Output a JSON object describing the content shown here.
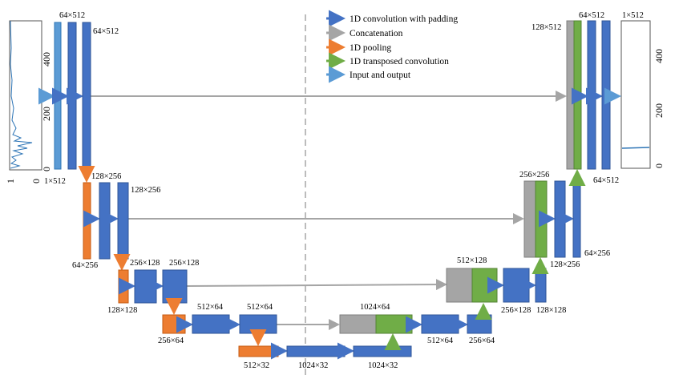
{
  "colors": {
    "conv": "#4472c4",
    "conv_edge": "#2f5597",
    "concat": "#a5a5a5",
    "pool": "#ed7d31",
    "transposed": "#70ad47",
    "io": "#5b9bd5",
    "dashed_line": "#a6a6a6"
  },
  "legend": [
    {
      "label": "1D convolution with padding",
      "color_key": "conv"
    },
    {
      "label": "Concatenation",
      "color_key": "concat"
    },
    {
      "label": "1D pooling",
      "color_key": "pool"
    },
    {
      "label": "1D transposed convolution",
      "color_key": "transposed"
    },
    {
      "label": "Input and output",
      "color_key": "io"
    }
  ],
  "labels": {
    "enc1_in": "1×512",
    "enc1_a": "64×512",
    "enc1_b": "64×512",
    "enc2_pool": "64×256",
    "enc2_a": "128×256",
    "enc2_b": "128×256",
    "enc3_pool": "128×128",
    "enc3_a": "256×128",
    "enc3_b": "256×128",
    "enc4_pool": "256×64",
    "enc4_a": "512×64",
    "enc4_b": "512×64",
    "bott_pool": "512×32",
    "bott_a": "1024×32",
    "bott_b": "1024×32",
    "dec4_cat": "1024×64",
    "dec4_a": "512×64",
    "dec4_b": "256×64",
    "dec3_cat": "512×128",
    "dec3_a": "256×128",
    "dec3_b": "128×128",
    "dec2_cat": "256×256",
    "dec2_a": "128×256",
    "dec2_b": "64×256",
    "dec1_cat": "128×512",
    "dec1_a": "64×512",
    "dec1_b": "64×512",
    "dec1_out": "1×512"
  },
  "input_plot": {
    "ticks": [
      "400",
      "200",
      "0"
    ],
    "axis_end_labels": [
      "1",
      "0"
    ]
  },
  "output_plot": {
    "ticks": [
      "400",
      "200",
      "0"
    ]
  }
}
